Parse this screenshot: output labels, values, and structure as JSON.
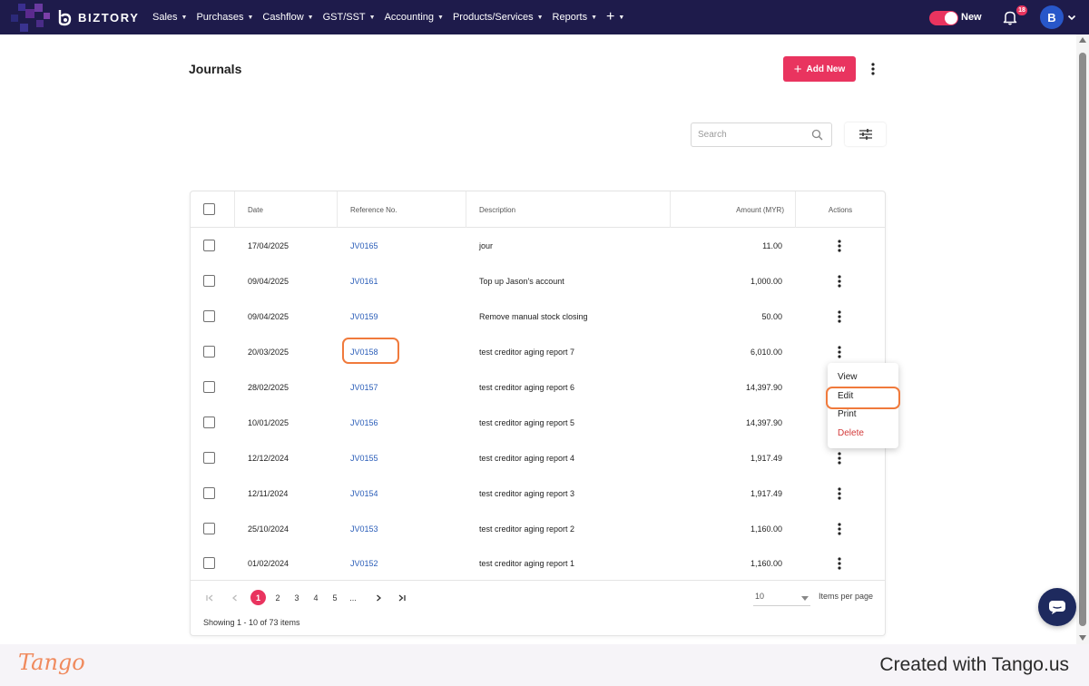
{
  "app": {
    "brand": "BIZTORY",
    "nav": [
      "Sales",
      "Purchases",
      "Cashflow",
      "GST/SST",
      "Accounting",
      "Products/Services",
      "Reports"
    ],
    "toggle_label": "New",
    "notification_count": "18",
    "avatar_initial": "B",
    "accent_color": "#e9345f",
    "navbar_color": "#1e1b4b",
    "link_color": "#2a5db8"
  },
  "page": {
    "title": "Journals",
    "add_new_label": "Add New",
    "search_placeholder": "Search"
  },
  "table": {
    "columns": [
      "Date",
      "Reference No.",
      "Description",
      "Amount (MYR)",
      "Actions"
    ],
    "rows": [
      {
        "date": "17/04/2025",
        "ref": "JV0165",
        "desc": "jour",
        "amount": "11.00"
      },
      {
        "date": "09/04/2025",
        "ref": "JV0161",
        "desc": "Top up Jason's account",
        "amount": "1,000.00"
      },
      {
        "date": "09/04/2025",
        "ref": "JV0159",
        "desc": "Remove manual stock closing",
        "amount": "50.00"
      },
      {
        "date": "20/03/2025",
        "ref": "JV0158",
        "desc": "test creditor aging report 7",
        "amount": "6,010.00"
      },
      {
        "date": "28/02/2025",
        "ref": "JV0157",
        "desc": "test creditor aging report 6",
        "amount": "14,397.90"
      },
      {
        "date": "10/01/2025",
        "ref": "JV0156",
        "desc": "test creditor aging report 5",
        "amount": "14,397.90"
      },
      {
        "date": "12/12/2024",
        "ref": "JV0155",
        "desc": "test creditor aging report 4",
        "amount": "1,917.49"
      },
      {
        "date": "12/11/2024",
        "ref": "JV0154",
        "desc": "test creditor aging report 3",
        "amount": "1,917.49"
      },
      {
        "date": "25/10/2024",
        "ref": "JV0153",
        "desc": "test creditor aging report 2",
        "amount": "1,160.00"
      },
      {
        "date": "01/02/2024",
        "ref": "JV0152",
        "desc": "test creditor aging report 1",
        "amount": "1,160.00"
      }
    ]
  },
  "pagination": {
    "pages": [
      "1",
      "2",
      "3",
      "4",
      "5",
      "..."
    ],
    "current_page": "1",
    "items_per_page": "10",
    "items_per_page_label": "Items per page",
    "showing": "Showing 1 - 10 of 73 items"
  },
  "action_menu": {
    "items": [
      "View",
      "Edit",
      "Print",
      "Delete"
    ],
    "highlighted": "Edit"
  },
  "footer": {
    "logo": "Tango",
    "text": "Created with Tango.us"
  }
}
